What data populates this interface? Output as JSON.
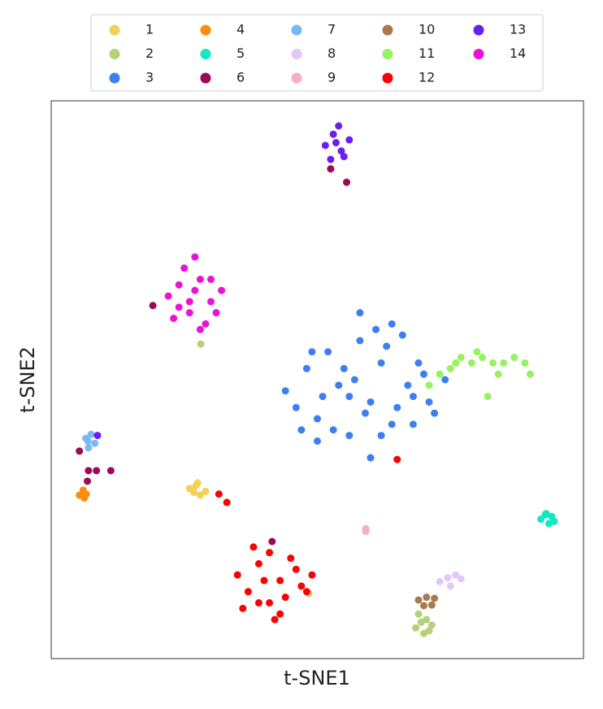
{
  "chart_data": {
    "type": "scatter",
    "x_label": "t-SNE1",
    "y_label": "t-SNE2",
    "xlim": [
      0,
      100
    ],
    "ylim": [
      0,
      100
    ],
    "legend_position": "top",
    "legend_columns": 5,
    "series": [
      {
        "name": "1",
        "color": "#f2d05a",
        "x": [
          26,
          27.5,
          29,
          28,
          26.8,
          27.2
        ],
        "y": [
          30.5,
          31.5,
          30,
          29.3,
          29.8,
          31
        ]
      },
      {
        "name": "2",
        "color": "#b5d17a",
        "x": [
          68.5,
          69.5,
          70.5,
          71.5,
          69,
          71,
          70,
          28.1,
          48.4
        ],
        "y": [
          5.5,
          6.5,
          7,
          6,
          8,
          5,
          4.5,
          56.4,
          11.7
        ]
      },
      {
        "name": "3",
        "color": "#3f7ef0",
        "x": [
          44,
          46,
          48,
          50,
          52,
          54,
          56,
          58,
          60,
          62,
          64,
          66,
          68,
          70,
          72,
          74,
          47,
          51,
          55,
          59,
          63,
          67,
          71,
          49,
          53,
          57,
          61,
          65,
          69,
          50,
          56,
          62,
          68,
          58,
          60,
          64
        ],
        "y": [
          48,
          45,
          52,
          43,
          55,
          49,
          40,
          57,
          46,
          53,
          42,
          58,
          47,
          51,
          44,
          50,
          41,
          47,
          52,
          44,
          56,
          49,
          46,
          55,
          41,
          50,
          59,
          45,
          53,
          39,
          47,
          40,
          42,
          62,
          36,
          60
        ]
      },
      {
        "name": "4",
        "color": "#ff8c0a",
        "x": [
          5.3,
          6,
          6.6,
          6.2
        ],
        "y": [
          29.3,
          30.2,
          29.5,
          28.8
        ]
      },
      {
        "name": "5",
        "color": "#12e8c3",
        "x": [
          92,
          93,
          94,
          94.5,
          93.5,
          92.8
        ],
        "y": [
          25,
          26,
          25.5,
          24.6,
          24.2,
          25.8
        ]
      },
      {
        "name": "6",
        "color": "#9b0a55",
        "x": [
          52.5,
          55.5,
          19.1,
          5.3,
          7,
          8.5,
          11.2,
          6.8,
          41.5
        ],
        "y": [
          87.8,
          85.4,
          63.3,
          37.2,
          33.7,
          33.7,
          33.7,
          31.8,
          21
        ]
      },
      {
        "name": "7",
        "color": "#79b8f4",
        "x": [
          6.5,
          7.5,
          8.2,
          7,
          6.9
        ],
        "y": [
          39.5,
          40.2,
          38.6,
          37.8,
          39
        ]
      },
      {
        "name": "8",
        "color": "#e0c8f7",
        "x": [
          73,
          74.5,
          76,
          75,
          77
        ],
        "y": [
          13.8,
          14.5,
          15,
          13,
          14.3
        ]
      },
      {
        "name": "9",
        "color": "#f7afc0",
        "x": [
          59.1,
          59.1
        ],
        "y": [
          23.3,
          22.8
        ]
      },
      {
        "name": "10",
        "color": "#a87b4e",
        "x": [
          69,
          70.5,
          72,
          70,
          71.5
        ],
        "y": [
          10.5,
          11,
          10.8,
          9.5,
          9.6
        ]
      },
      {
        "name": "11",
        "color": "#96f261",
        "x": [
          71,
          73,
          75,
          77,
          79,
          81,
          83,
          85,
          87,
          89,
          90,
          76,
          80,
          84,
          82
        ],
        "y": [
          49,
          51,
          52,
          54,
          53,
          54,
          53,
          53,
          54,
          53,
          51,
          53,
          55,
          51,
          47
        ]
      },
      {
        "name": "12",
        "color": "#ff0000",
        "x": [
          35,
          37,
          39,
          41,
          43,
          45,
          47,
          49,
          36,
          38,
          40,
          42,
          44,
          46,
          48,
          41,
          43,
          39,
          31.5,
          33,
          65
        ],
        "y": [
          15,
          12,
          17,
          10,
          14,
          18,
          13,
          15,
          9,
          20,
          14,
          7,
          11,
          16,
          12,
          19,
          8,
          10,
          29.5,
          28,
          35.7
        ]
      },
      {
        "name": "13",
        "color": "#6a1ff0",
        "x": [
          51.5,
          53,
          54.5,
          56,
          52.5,
          55,
          53.5,
          54,
          8.7
        ],
        "y": [
          92,
          94,
          91,
          93,
          89.5,
          90,
          92.5,
          95.5,
          40
        ]
      },
      {
        "name": "14",
        "color": "#ea12d8",
        "x": [
          22,
          24,
          26,
          28,
          30,
          32,
          23,
          25,
          27,
          29,
          31,
          26,
          28,
          24,
          30,
          27
        ],
        "y": [
          65,
          67,
          62,
          68,
          64,
          66,
          61,
          70,
          72,
          60,
          62,
          64,
          59,
          63,
          68,
          66
        ]
      }
    ]
  }
}
